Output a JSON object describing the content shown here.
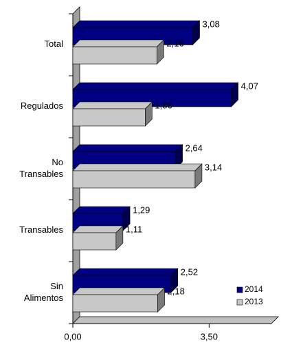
{
  "chart_data": {
    "type": "bar3d_horizontal",
    "categories": [
      "Total",
      "Regulados",
      "No Transables",
      "Transables",
      "Sin Alimentos"
    ],
    "series": [
      {
        "name": "2014",
        "color": "#000080",
        "side_color": "#00004a",
        "values": [
          3.08,
          4.07,
          2.64,
          1.29,
          2.52
        ],
        "value_labels": [
          "3,08",
          "4,07",
          "2,64",
          "1,29",
          "2,52"
        ]
      },
      {
        "name": "2013",
        "color": "#c8c8c8",
        "side_color": "#7a7a7a",
        "values": [
          2.16,
          1.86,
          3.14,
          1.11,
          2.18
        ],
        "value_labels": [
          "2,16",
          "1,86",
          "3,14",
          "1,11",
          "2,18"
        ]
      }
    ],
    "xlim": [
      0,
      5.1
    ],
    "xticks": [
      {
        "value": 0,
        "label": "0,00"
      },
      {
        "value": 3.5,
        "label": "3,50"
      }
    ],
    "legend": "lower right"
  }
}
